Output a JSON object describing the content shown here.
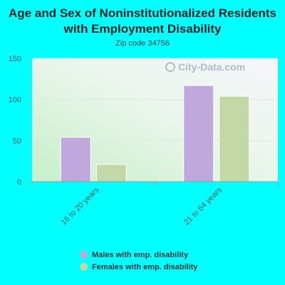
{
  "chart_data": {
    "type": "bar",
    "title": "Age and Sex of Noninstitutionalized Residents with Employment Disability",
    "subtitle": "Zip code 34756",
    "categories": [
      "16 to 20 years",
      "21 to 64 years"
    ],
    "series": [
      {
        "name": "Males with emp. disability",
        "color": "#bfa8dc",
        "values": [
          54,
          117
        ]
      },
      {
        "name": "Females with emp. disability",
        "color": "#c4d8a6",
        "values": [
          21,
          104
        ]
      }
    ],
    "ylim": [
      0,
      150
    ],
    "yticks": [
      0,
      50,
      100,
      150
    ],
    "grid": true,
    "legend": "bottom"
  },
  "watermark": {
    "text": "City-Data.com",
    "icon": "magnifier-icon"
  }
}
